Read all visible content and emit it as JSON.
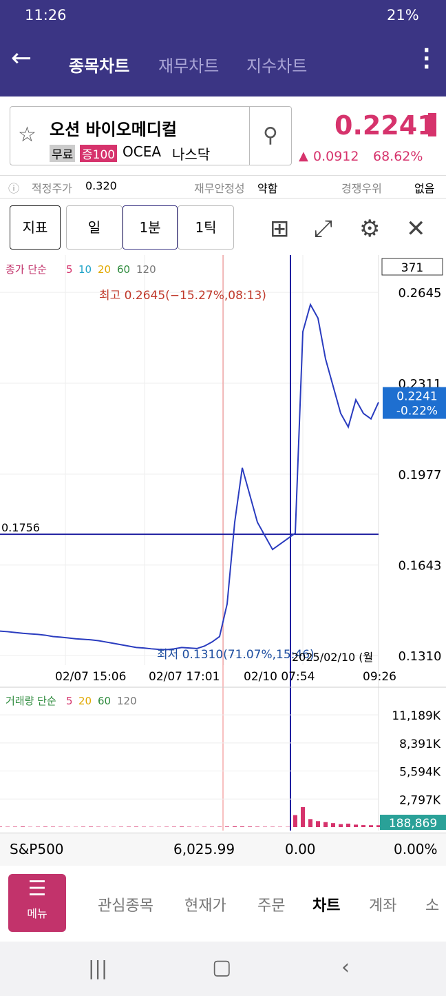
{
  "status_bar": {
    "time": "11:26",
    "battery": "21%"
  },
  "app_bar": {
    "tabs": [
      "종목차트",
      "재무차트",
      "지수차트"
    ]
  },
  "stock": {
    "name": "오션 바이오메디컬",
    "tags": [
      "무료",
      "증100",
      "OCEA",
      "나스닥"
    ],
    "price": "0.2241",
    "change": "0.0912",
    "change_pct": "68.62%"
  },
  "metrics": [
    {
      "label": "적정주가",
      "value": "0.320"
    },
    {
      "label": "재무안정성",
      "value": "약함"
    },
    {
      "label": "경쟁우위",
      "value": "없음"
    }
  ],
  "toolbar": {
    "buttons": [
      "지표",
      "일",
      "1분",
      "1틱"
    ]
  },
  "chart_data": [
    {
      "type": "line",
      "legend": {
        "title": "종가 단순",
        "periods": [
          {
            "label": "5",
            "color": "#d6336c"
          },
          {
            "label": "10",
            "color": "#1fa3c8"
          },
          {
            "label": "20",
            "color": "#e0a800"
          },
          {
            "label": "60",
            "color": "#2e8b3d"
          },
          {
            "label": "120",
            "color": "#777777"
          }
        ]
      },
      "count_label": "371",
      "color": "#2a3cbf",
      "values": [
        0.14,
        0.1398,
        0.1395,
        0.1392,
        0.139,
        0.1388,
        0.1385,
        0.138,
        0.1378,
        0.1375,
        0.1372,
        0.137,
        0.1368,
        0.1365,
        0.136,
        0.1355,
        0.135,
        0.1345,
        0.134,
        0.1338,
        0.1335,
        0.1333,
        0.1332,
        0.1335,
        0.134,
        0.1338,
        0.1336,
        0.1345,
        0.136,
        0.138,
        0.15,
        0.18,
        0.2,
        0.19,
        0.18,
        0.175,
        0.17,
        0.172,
        0.174,
        0.176,
        0.25,
        0.26,
        0.255,
        0.24,
        0.23,
        0.22,
        0.215,
        0.225,
        0.22,
        0.218,
        0.2241
      ],
      "ylim": [
        0.1275,
        0.2782
      ],
      "yticks": [
        0.2645,
        0.2311,
        0.1977,
        0.1643,
        {
          "value": 0.131,
          "label": "0.1310"
        }
      ],
      "x_labels": [
        "02/07 15:06",
        "02/07 17:01",
        "02/10 07:54",
        "09:26"
      ],
      "crosshair": {
        "value": 0.1756,
        "date": "2025/02/10 (월"
      },
      "last": {
        "value": 0.2241,
        "change": "-0.22%"
      },
      "annotations": [
        "최고 0.2645(−15.27%,08:13)",
        "최저 0.1310(71.07%,15:46)"
      ]
    },
    {
      "type": "bar",
      "legend": {
        "title": "거래량 단순",
        "periods": [
          {
            "label": "5",
            "color": "#d6336c"
          },
          {
            "label": "20",
            "color": "#e0a800"
          },
          {
            "label": "60",
            "color": "#2e8b3d"
          },
          {
            "label": "120",
            "color": "#777777"
          }
        ]
      },
      "color": "#d6336c",
      "values": [
        50,
        40,
        45,
        60,
        30,
        40,
        50,
        45,
        40,
        35,
        30,
        45,
        50,
        40,
        35,
        30,
        40,
        45,
        50,
        40,
        35,
        30,
        40,
        45,
        60,
        40,
        30,
        35,
        40,
        45,
        60,
        80,
        70,
        60,
        50,
        40,
        40,
        35,
        30,
        1200,
        2000,
        800,
        600,
        500,
        400,
        300,
        350,
        250,
        200,
        190,
        188.869
      ],
      "value_labels": [
        null,
        null,
        null,
        null,
        null,
        null,
        null,
        null,
        null,
        null,
        null,
        null,
        null,
        null,
        null,
        null,
        null,
        null,
        null,
        null,
        null,
        null,
        null,
        null,
        null,
        null,
        null,
        null,
        null,
        null,
        null,
        null,
        null,
        null,
        null,
        null,
        null,
        null,
        null,
        null,
        null,
        null,
        null,
        null,
        null,
        null,
        null,
        null,
        null,
        null,
        "188,869"
      ],
      "ylim": [
        0,
        13400
      ],
      "yticks": [
        {
          "value": 11189,
          "label": "11,189K"
        },
        {
          "value": 8391,
          "label": "8,391K"
        },
        {
          "value": 5594,
          "label": "5,594K"
        },
        {
          "value": 2797,
          "label": "2,797K"
        }
      ]
    }
  ],
  "index_row": {
    "name": "S&P500",
    "value": "6,025.99",
    "change": "0.00",
    "change_pct": "0.00%"
  },
  "bottom_nav": {
    "menu": "메뉴",
    "tabs": [
      "관심종목",
      "현재가",
      "주문",
      "차트",
      "계좌",
      "소"
    ]
  }
}
